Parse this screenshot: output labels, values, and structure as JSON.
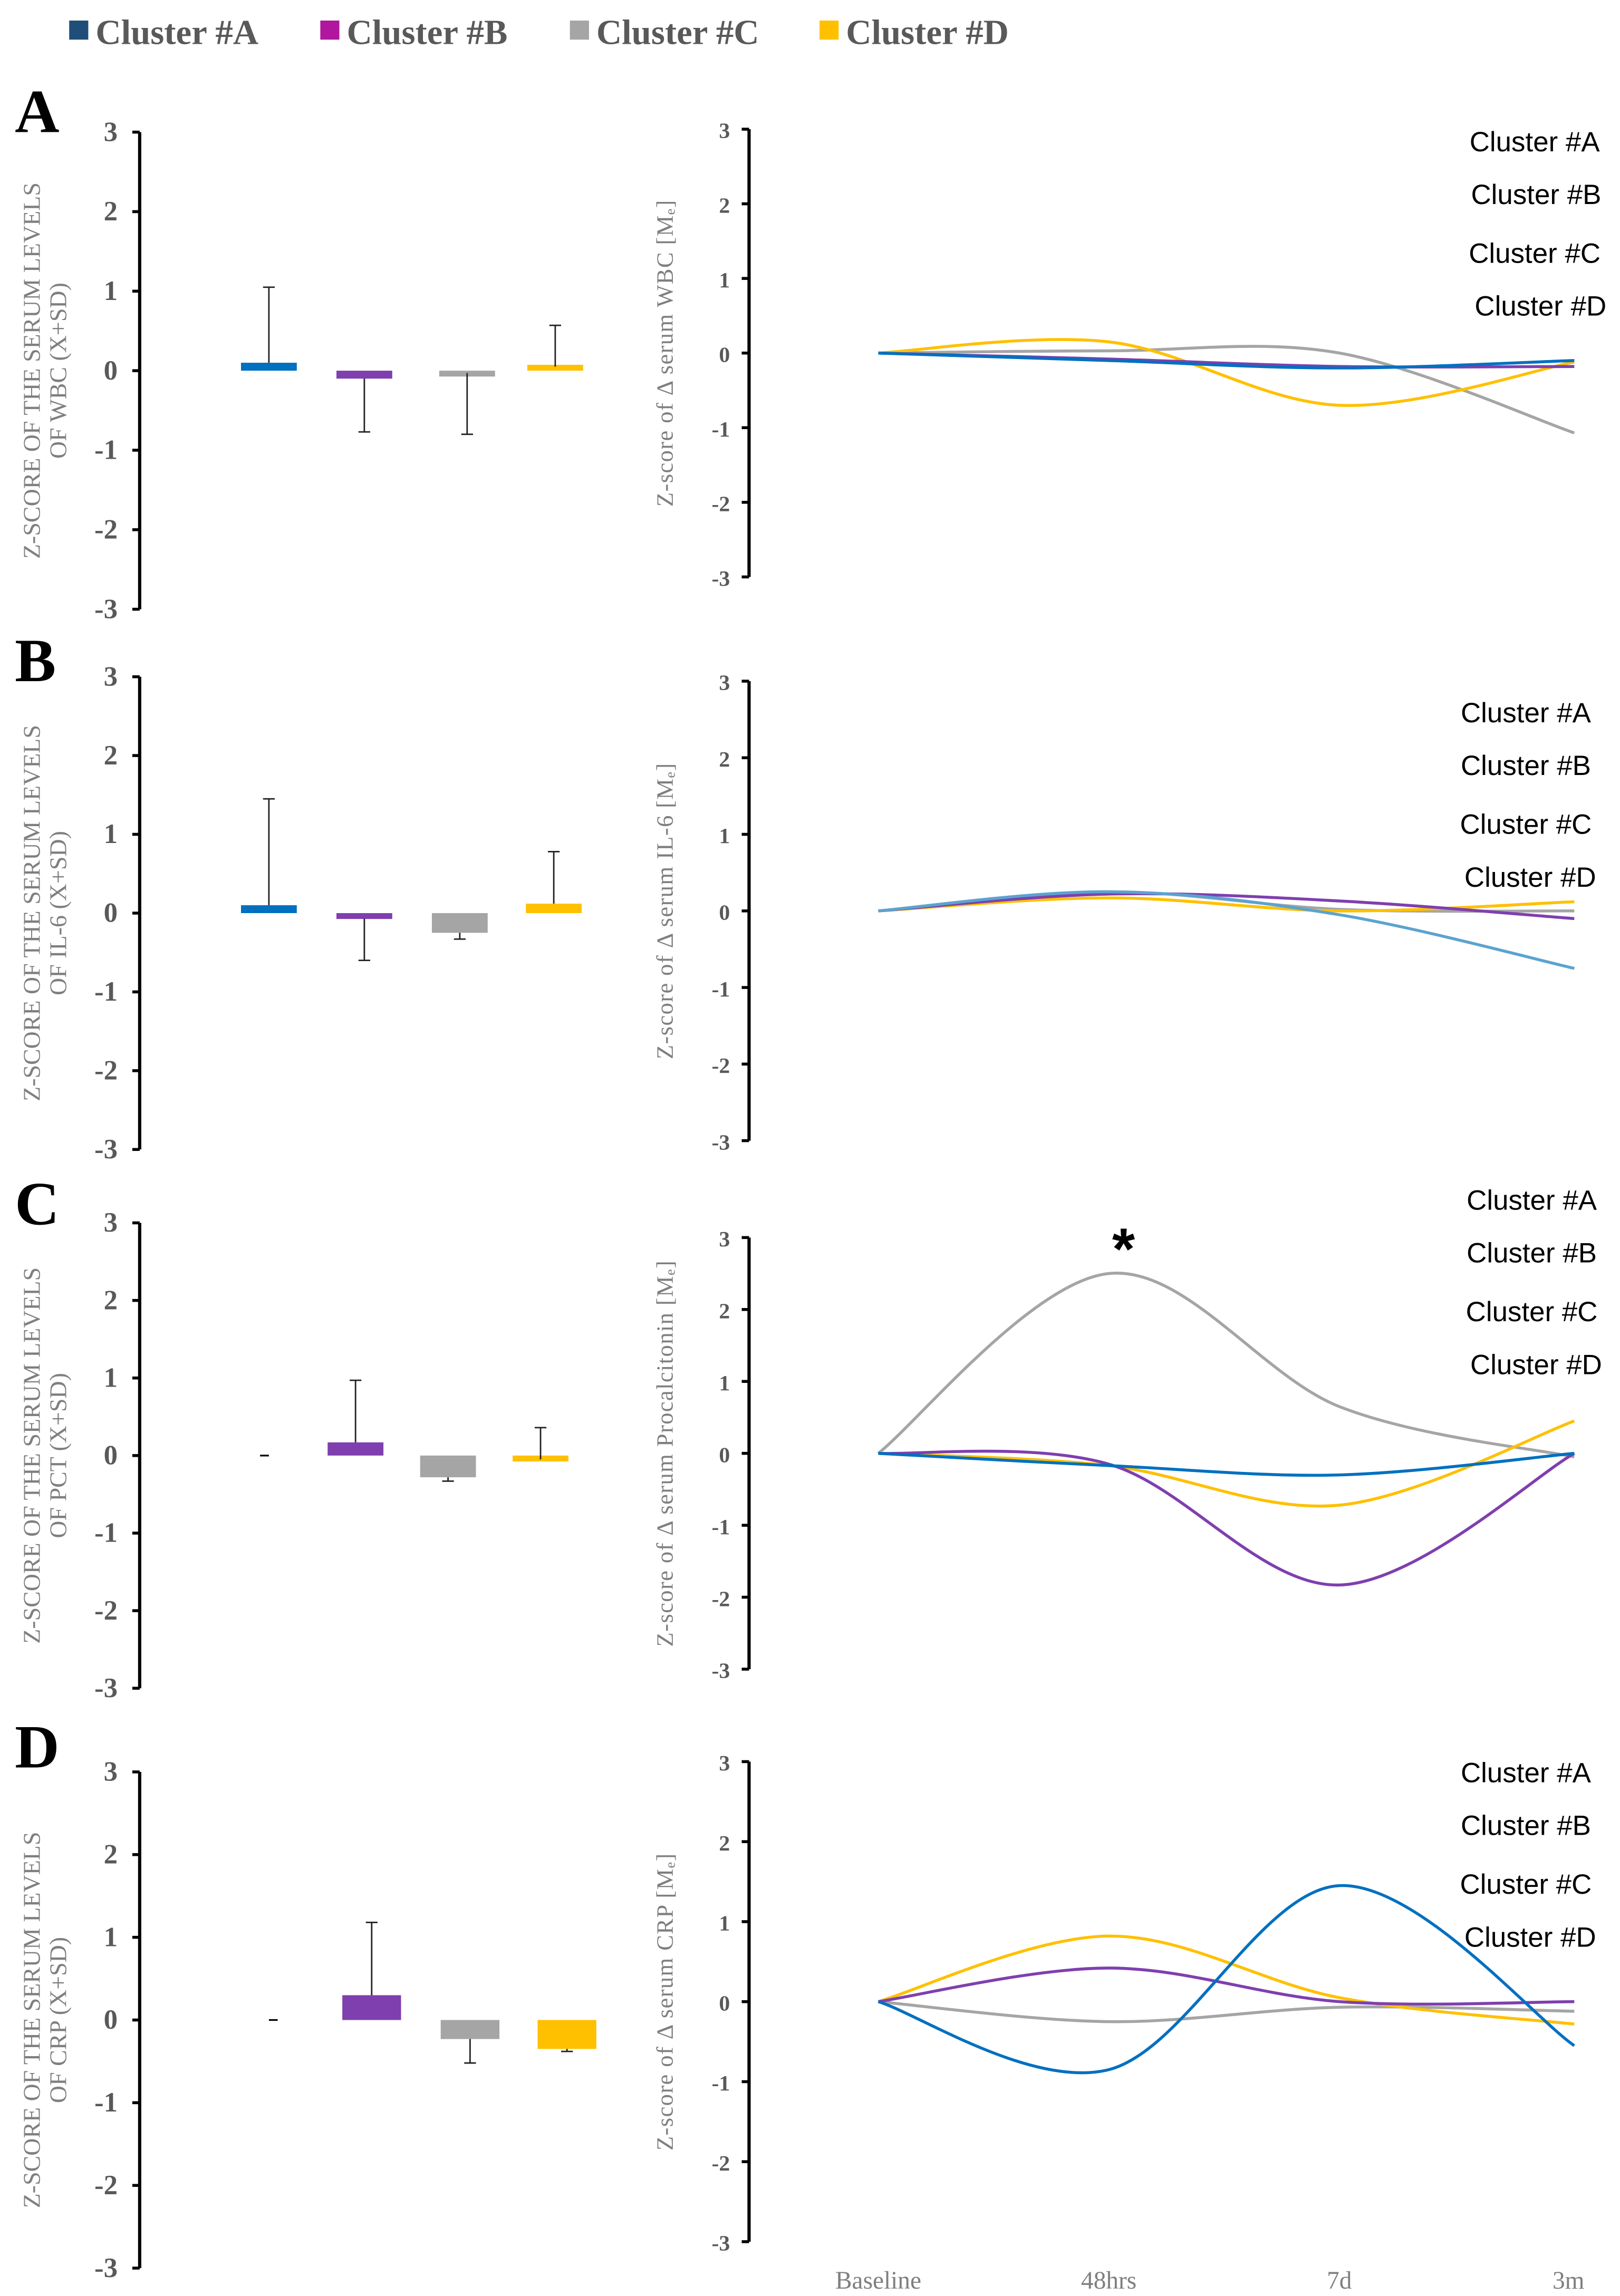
{
  "legend": {
    "items": [
      {
        "label": "Cluster #A",
        "color": "#1F4E79"
      },
      {
        "label": "Cluster #B",
        "color": "#B0179E"
      },
      {
        "label": "Cluster #C",
        "color": "#A5A5A5"
      },
      {
        "label": "Cluster #D",
        "color": "#FFC000"
      }
    ]
  },
  "colors": {
    "A": "#0070C0",
    "B": "#7F3FAF",
    "C": "#A5A5A5",
    "D": "#FFC000",
    "A_il6": "#5BA3D0"
  },
  "chart_data": [
    {
      "panel": "A",
      "type": "bar",
      "ylabel": [
        "Z-SCORE OF THE SERUM LEVELS",
        "OF WBC (X+SD)"
      ],
      "ylim": [
        -3,
        3
      ],
      "yticks": [
        "3",
        "2",
        "1",
        "0",
        "-1",
        "-2",
        "-3"
      ],
      "categories": [
        "Cluster #A",
        "Cluster #B",
        "Cluster #C",
        "Cluster #D"
      ],
      "values": [
        0.1,
        -0.1,
        -0.03,
        0.05
      ],
      "error_ends": [
        1.05,
        -0.77,
        -0.8,
        0.57
      ]
    },
    {
      "panel": "A",
      "type": "line",
      "ylabel": "Z-score of Δ serum WBC [Mₑ]",
      "ylim": [
        -3,
        3
      ],
      "yticks": [
        "3",
        "2",
        "1",
        "0",
        "-1",
        "-2",
        "-3"
      ],
      "x": [
        "Baseline",
        "48hrs",
        "7d",
        "3m"
      ],
      "series": [
        {
          "name": "Cluster #A",
          "values": [
            0,
            -0.1,
            -0.2,
            -0.1
          ]
        },
        {
          "name": "Cluster #B",
          "values": [
            0,
            -0.08,
            -0.18,
            -0.18
          ]
        },
        {
          "name": "Cluster #C",
          "values": [
            0,
            0.03,
            0.0,
            -1.07
          ]
        },
        {
          "name": "Cluster #D",
          "values": [
            0,
            0.15,
            -0.7,
            -0.12
          ]
        }
      ]
    },
    {
      "panel": "B",
      "type": "bar",
      "ylabel": [
        "Z-SCORE OF THE SERUM LEVELS",
        "OF IL-6 (X+SD)"
      ],
      "ylim": [
        -3,
        3
      ],
      "yticks": [
        "3",
        "2",
        "1",
        "0",
        "-1",
        "-2",
        "-3"
      ],
      "categories": [
        "Cluster #A",
        "Cluster #B",
        "Cluster #C",
        "Cluster #D"
      ],
      "values": [
        0.1,
        -0.07,
        -0.25,
        0.12
      ],
      "error_ends": [
        1.45,
        -0.6,
        -0.33,
        0.78
      ]
    },
    {
      "panel": "B",
      "type": "line",
      "ylabel": "Z-score of Δ serum IL-6 [Mₑ]",
      "ylim": [
        -3,
        3
      ],
      "yticks": [
        "3",
        "2",
        "1",
        "0",
        "-1",
        "-2",
        "-3"
      ],
      "x": [
        "Baseline",
        "48hrs",
        "7d",
        "3m"
      ],
      "series": [
        {
          "name": "Cluster #A",
          "values": [
            0,
            0.25,
            -0.05,
            -0.75
          ]
        },
        {
          "name": "Cluster #B",
          "values": [
            0,
            0.22,
            0.13,
            -0.1
          ]
        },
        {
          "name": "Cluster #C",
          "values": [
            0,
            0.25,
            0.02,
            0.0
          ]
        },
        {
          "name": "Cluster #D",
          "values": [
            0,
            0.17,
            0.0,
            0.12
          ]
        }
      ]
    },
    {
      "panel": "C",
      "type": "bar",
      "ylabel": [
        "Z-SCORE OF THE SERUM LEVELS",
        "OF PCT (X+SD)"
      ],
      "ylim": [
        -3,
        3
      ],
      "yticks": [
        "3",
        "2",
        "1",
        "0",
        "-1",
        "-2",
        "-3"
      ],
      "categories": [
        "Cluster #A",
        "Cluster #B",
        "Cluster #C",
        "Cluster #D"
      ],
      "values": [
        0,
        0.17,
        -0.28,
        -0.05
      ],
      "error_ends": [
        null,
        0.97,
        -0.33,
        0.36
      ]
    },
    {
      "panel": "C",
      "type": "line",
      "ylabel": "Z-score of Δ serum Procalcitonin [Mₑ]",
      "ylim": [
        -3,
        3
      ],
      "yticks": [
        "3",
        "2",
        "1",
        "0",
        "-1",
        "-2",
        "-3"
      ],
      "annotation": "*",
      "x": [
        "Baseline",
        "48hrs",
        "7d",
        "3m"
      ],
      "series": [
        {
          "name": "Cluster #A",
          "values": [
            0,
            -0.17,
            -0.3,
            0
          ]
        },
        {
          "name": "Cluster #B",
          "values": [
            0,
            -0.15,
            -1.83,
            0
          ]
        },
        {
          "name": "Cluster #C",
          "values": [
            0,
            2.5,
            0.65,
            -0.05
          ]
        },
        {
          "name": "Cluster #D",
          "values": [
            0,
            -0.17,
            -0.72,
            0.45
          ]
        }
      ]
    },
    {
      "panel": "D",
      "type": "bar",
      "ylabel": [
        "Z-SCORE OF THE SERUM LEVELS",
        "OF CRP (X+SD)"
      ],
      "ylim": [
        -3,
        3
      ],
      "yticks": [
        "3",
        "2",
        "1",
        "0",
        "-1",
        "-2",
        "-3"
      ],
      "categories": [
        "Cluster #A",
        "Cluster #B",
        "Cluster #C",
        "Cluster #D"
      ],
      "values": [
        0,
        0.3,
        -0.23,
        -0.35
      ],
      "error_ends": [
        null,
        1.18,
        -0.52,
        -0.38
      ]
    },
    {
      "panel": "D",
      "type": "line",
      "ylabel": "Z-score of Δ serum CRP [Mₑ]",
      "ylim": [
        -3,
        3
      ],
      "yticks": [
        "3",
        "2",
        "1",
        "0",
        "-1",
        "-2",
        "-3"
      ],
      "xticks_shown": true,
      "x": [
        "Baseline",
        "48hrs",
        "7d",
        "3m"
      ],
      "series": [
        {
          "name": "Cluster #A",
          "values": [
            0,
            -0.85,
            1.45,
            -0.55
          ]
        },
        {
          "name": "Cluster #B",
          "values": [
            0,
            0.42,
            0.0,
            0.0
          ]
        },
        {
          "name": "Cluster #C",
          "values": [
            0,
            -0.25,
            -0.07,
            -0.12
          ]
        },
        {
          "name": "Cluster #D",
          "values": [
            0,
            0.82,
            0.05,
            -0.28
          ]
        }
      ]
    }
  ]
}
